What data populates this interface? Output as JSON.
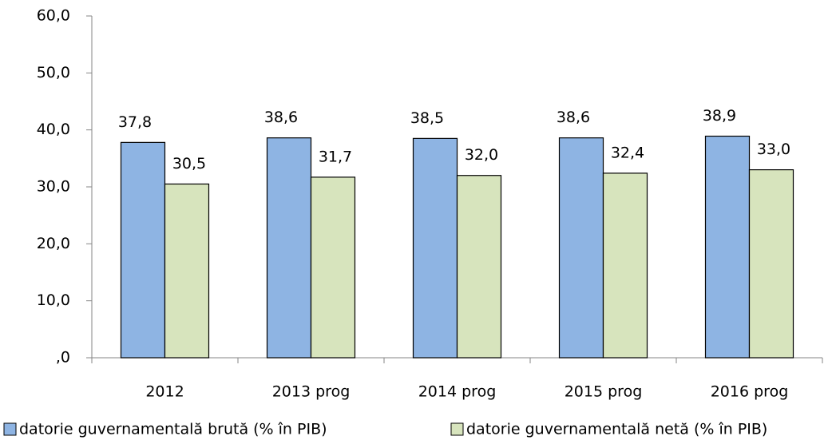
{
  "chart_data": {
    "type": "bar",
    "categories": [
      "2012",
      "2013 prog",
      "2014 prog",
      "2015 prog",
      "2016 prog"
    ],
    "series": [
      {
        "name": "datorie guvernamentală brută (% în PIB)",
        "color": "#8eb4e3",
        "values": [
          37.8,
          38.6,
          38.5,
          38.6,
          38.9
        ],
        "value_labels": [
          "37,8",
          "38,6",
          "38,5",
          "38,6",
          "38,9"
        ]
      },
      {
        "name": "datorie guvernamentală netă (% în PIB)",
        "color": "#d7e4bd",
        "values": [
          30.5,
          31.7,
          32.0,
          32.4,
          33.0
        ],
        "value_labels": [
          "30,5",
          "31,7",
          "32,0",
          "32,4",
          "33,0"
        ]
      }
    ],
    "ylim": [
      0,
      60
    ],
    "yticks": [
      {
        "value": 0,
        "label": ",0"
      },
      {
        "value": 10,
        "label": "10,0"
      },
      {
        "value": 20,
        "label": "20,0"
      },
      {
        "value": 30,
        "label": "30,0"
      },
      {
        "value": 40,
        "label": "40,0"
      },
      {
        "value": 50,
        "label": "50,0"
      },
      {
        "value": 60,
        "label": "60,0"
      }
    ],
    "grid": false,
    "legend": "bottom"
  }
}
